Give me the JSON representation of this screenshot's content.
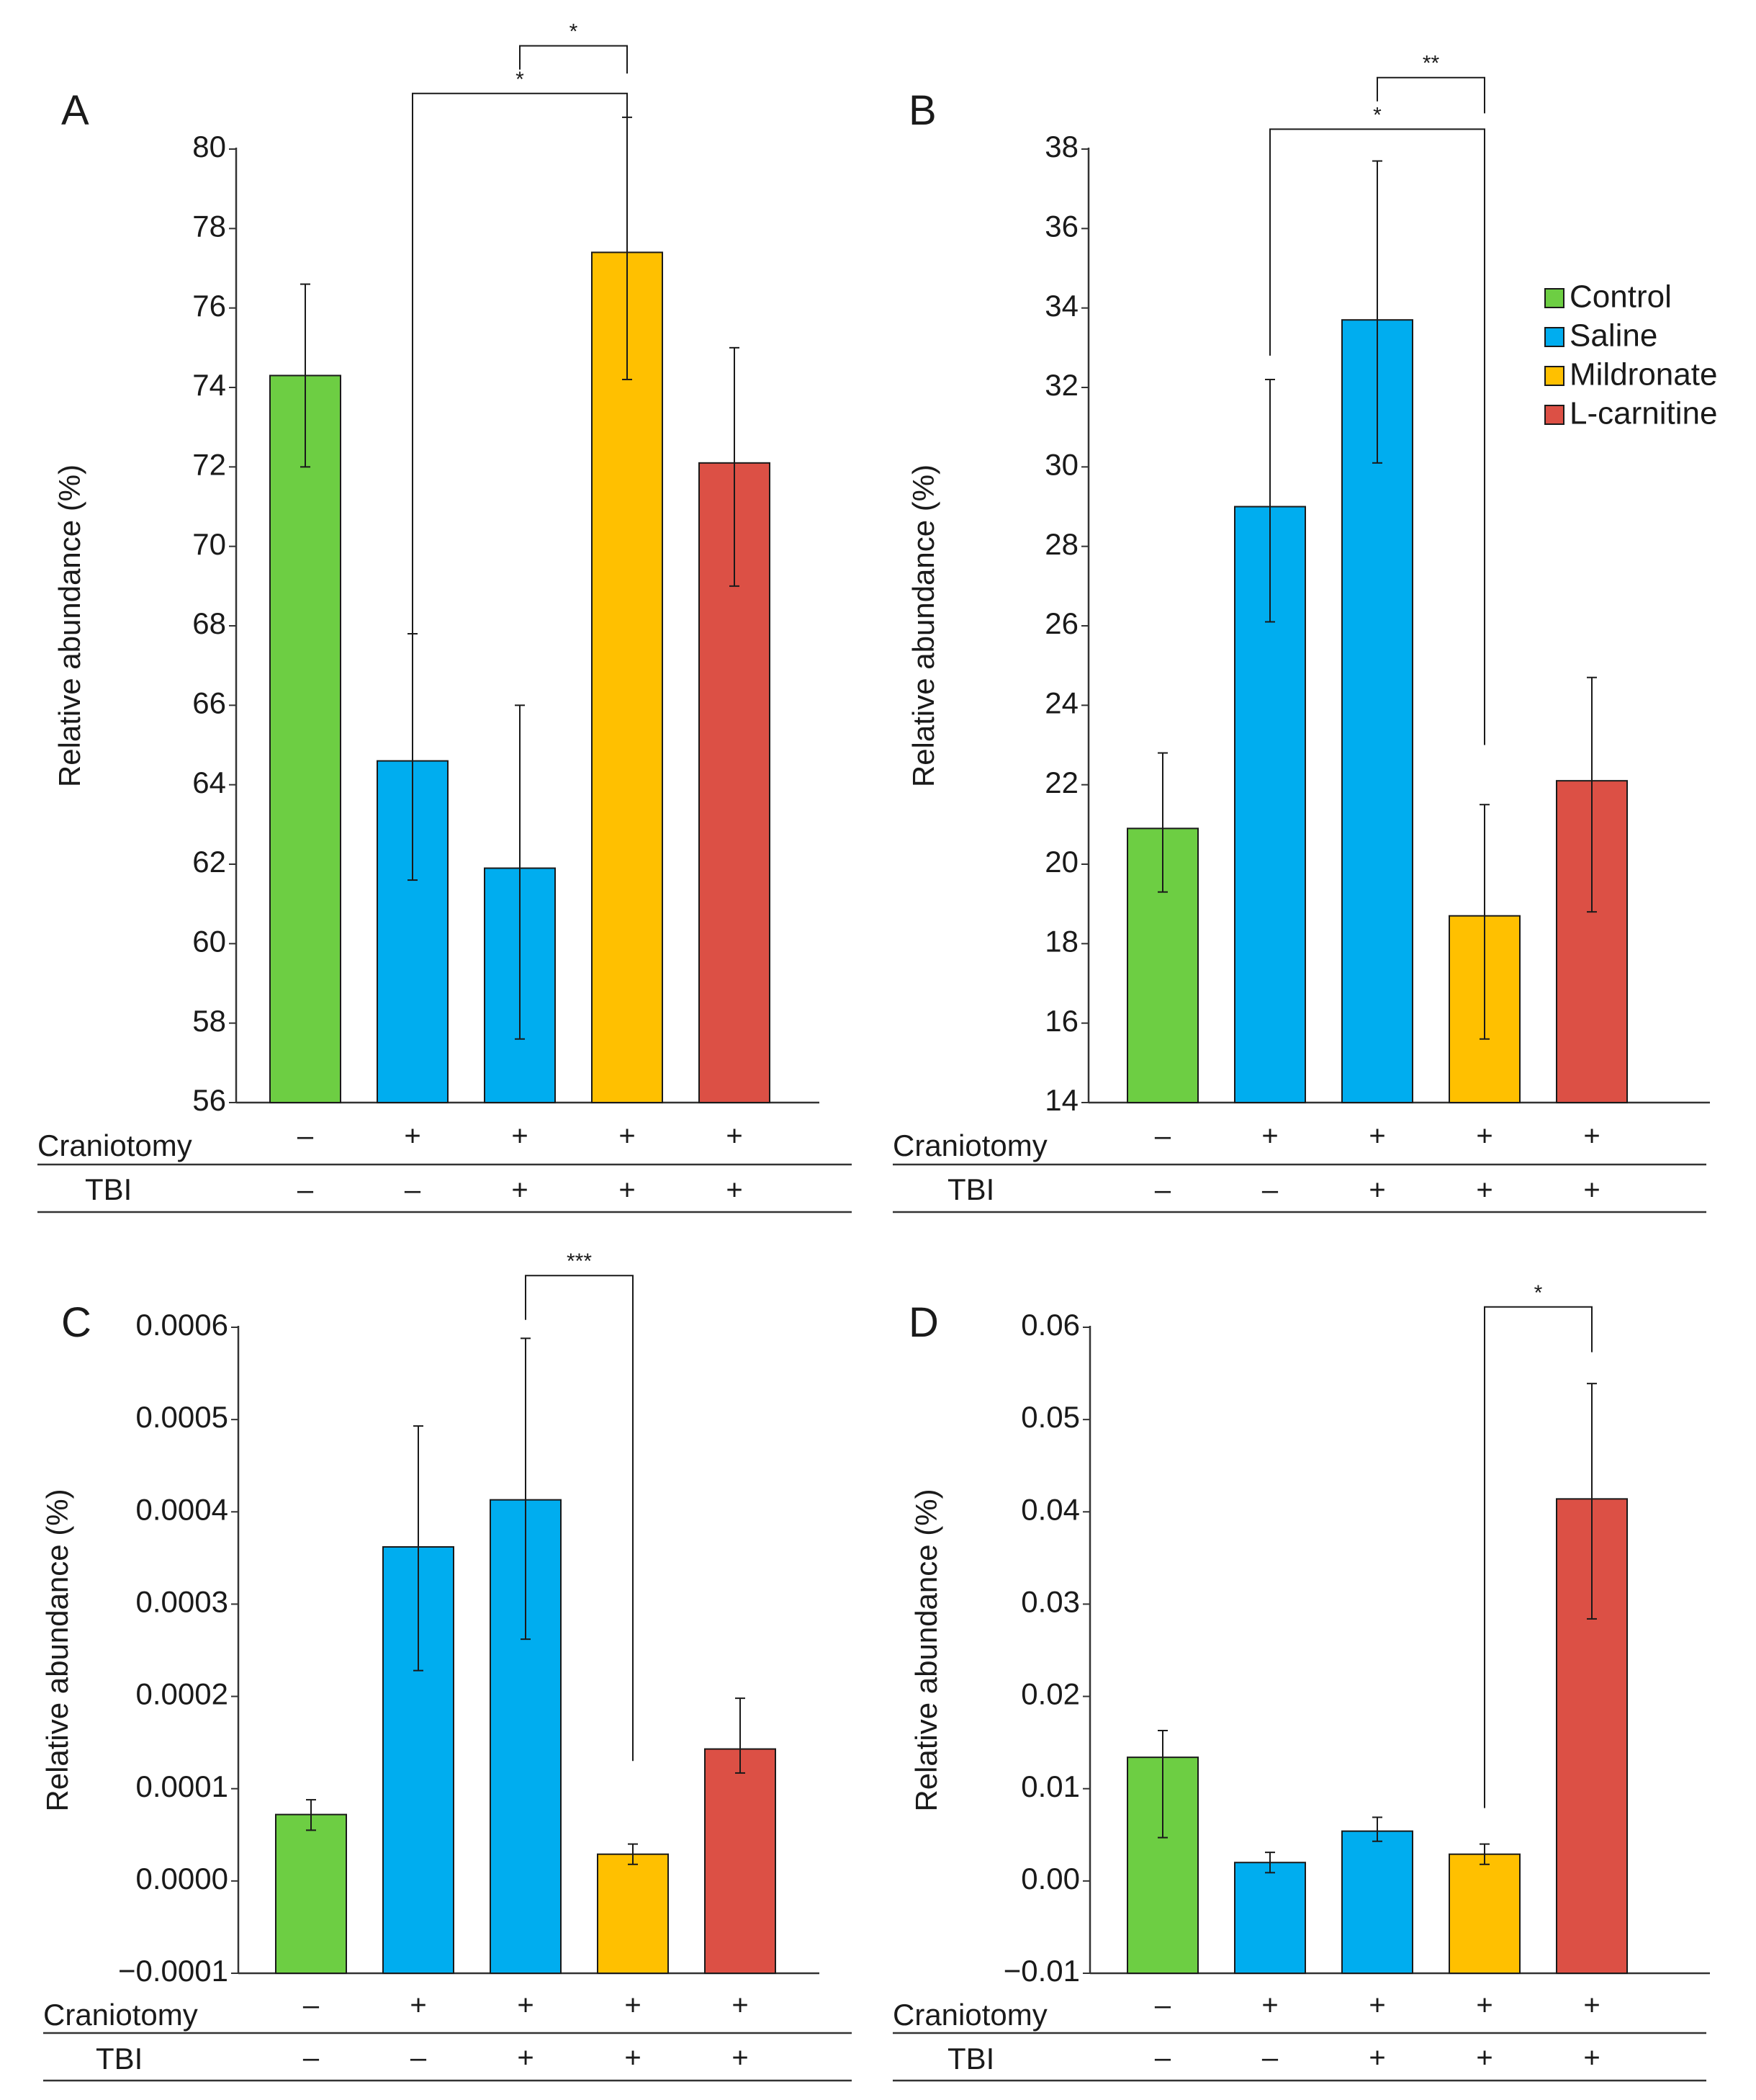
{
  "legend": [
    {
      "label": "Control",
      "color": "#6dce43"
    },
    {
      "label": "Saline",
      "color": "#00adef"
    },
    {
      "label": "Mildronate",
      "color": "#ffc000"
    },
    {
      "label": "L-carnitine",
      "color": "#dc5045"
    }
  ],
  "row_labels": {
    "craniotomy": "Craniotomy",
    "tbi": "TBI"
  },
  "chart_data": [
    {
      "panel": "A",
      "type": "bar",
      "ylabel": "Relative abundance (%)",
      "ylim": [
        56,
        80
      ],
      "y_ticks": [
        56,
        58,
        60,
        62,
        64,
        66,
        68,
        70,
        72,
        74,
        76,
        78,
        80
      ],
      "y_tick_labels": [
        "56",
        "58",
        "60",
        "62",
        "64",
        "66",
        "68",
        "70",
        "72",
        "74",
        "76",
        "78",
        "80"
      ],
      "bars": [
        {
          "group": "Control",
          "value": 74.3,
          "err_high": 76.6,
          "err_low": 72.0,
          "color": "#6dce43"
        },
        {
          "group": "Saline",
          "value": 64.6,
          "err_high": 67.8,
          "err_low": 61.6,
          "color": "#00adef"
        },
        {
          "group": "Saline",
          "value": 61.9,
          "err_high": 66.0,
          "err_low": 57.6,
          "color": "#00adef"
        },
        {
          "group": "Mildronate",
          "value": 77.4,
          "err_high": 80.8,
          "err_low": 74.2,
          "color": "#ffc000"
        },
        {
          "group": "L-carnitine",
          "value": 72.1,
          "err_high": 75.0,
          "err_low": 69.0,
          "color": "#dc5045"
        }
      ],
      "craniotomy": [
        "–",
        "+",
        "+",
        "+",
        "+"
      ],
      "tbi": [
        "–",
        "–",
        "+",
        "+",
        "+"
      ],
      "significance": [
        {
          "from": 1,
          "to": 3,
          "label": "*",
          "y_top": 81.4,
          "left_end": 67.6,
          "right_end": 80.8
        },
        {
          "from": 2,
          "to": 3,
          "label": "*",
          "y_top": 82.6,
          "left_end": 82.0,
          "right_end": 81.9
        }
      ]
    },
    {
      "panel": "B",
      "type": "bar",
      "ylabel": "Relative abundance (%)",
      "ylim": [
        14,
        38
      ],
      "y_ticks": [
        14,
        16,
        18,
        20,
        22,
        24,
        26,
        28,
        30,
        32,
        34,
        36,
        38
      ],
      "y_tick_labels": [
        "14",
        "16",
        "18",
        "20",
        "22",
        "24",
        "26",
        "28",
        "30",
        "32",
        "34",
        "36",
        "38"
      ],
      "bars": [
        {
          "group": "Control",
          "value": 20.9,
          "err_high": 22.8,
          "err_low": 19.3,
          "color": "#6dce43"
        },
        {
          "group": "Saline",
          "value": 29.0,
          "err_high": 32.2,
          "err_low": 26.1,
          "color": "#00adef"
        },
        {
          "group": "Saline",
          "value": 33.7,
          "err_high": 37.7,
          "err_low": 30.1,
          "color": "#00adef"
        },
        {
          "group": "Mildronate",
          "value": 18.7,
          "err_high": 21.5,
          "err_low": 15.6,
          "color": "#ffc000"
        },
        {
          "group": "L-carnitine",
          "value": 22.1,
          "err_high": 24.7,
          "err_low": 18.8,
          "color": "#dc5045"
        }
      ],
      "craniotomy": [
        "–",
        "+",
        "+",
        "+",
        "+"
      ],
      "tbi": [
        "–",
        "–",
        "+",
        "+",
        "+"
      ],
      "significance": [
        {
          "from": 1,
          "to": 3,
          "label": "*",
          "y_top": 38.5,
          "left_end": 32.8,
          "right_end": 23.0
        },
        {
          "from": 2,
          "to": 3,
          "label": "**",
          "y_top": 39.8,
          "left_end": 39.2,
          "right_end": 38.9
        }
      ]
    },
    {
      "panel": "C",
      "type": "bar",
      "ylabel": "Relative abundance (%)",
      "ylim": [
        -0.0001,
        0.0006
      ],
      "y_ticks": [
        -0.0001,
        0.0,
        0.0001,
        0.0002,
        0.0003,
        0.0004,
        0.0005,
        0.0006
      ],
      "y_tick_labels": [
        "−0.0001",
        "0.0000",
        "0.0001",
        "0.0002",
        "0.0003",
        "0.0004",
        "0.0005",
        "0.0006"
      ],
      "bars": [
        {
          "group": "Control",
          "value": 7.2e-05,
          "err_high": 8.8e-05,
          "err_low": 5.5e-05,
          "color": "#6dce43"
        },
        {
          "group": "Saline",
          "value": 0.000362,
          "err_high": 0.000493,
          "err_low": 0.000228,
          "color": "#00adef"
        },
        {
          "group": "Saline",
          "value": 0.000413,
          "err_high": 0.000588,
          "err_low": 0.000262,
          "color": "#00adef"
        },
        {
          "group": "Mildronate",
          "value": 2.9e-05,
          "err_high": 4e-05,
          "err_low": 1.8e-05,
          "color": "#ffc000"
        },
        {
          "group": "L-carnitine",
          "value": 0.000143,
          "err_high": 0.000198,
          "err_low": 0.000117,
          "color": "#dc5045"
        }
      ],
      "craniotomy": [
        "–",
        "+",
        "+",
        "+",
        "+"
      ],
      "tbi": [
        "–",
        "–",
        "+",
        "+",
        "+"
      ],
      "significance": [
        {
          "from": 2,
          "to": 3,
          "label": "***",
          "y_top": 0.000656,
          "left_end": 0.000608,
          "right_end": 0.00013
        }
      ]
    },
    {
      "panel": "D",
      "type": "bar",
      "ylabel": "Relative abundance (%)",
      "ylim": [
        -0.01,
        0.06
      ],
      "y_ticks": [
        -0.01,
        0.0,
        0.01,
        0.02,
        0.03,
        0.04,
        0.05,
        0.06
      ],
      "y_tick_labels": [
        "−0.01",
        "0.00",
        "0.01",
        "0.02",
        "0.03",
        "0.04",
        "0.05",
        "0.06"
      ],
      "bars": [
        {
          "group": "Control",
          "value": 0.0134,
          "err_high": 0.0163,
          "err_low": 0.0047,
          "color": "#6dce43"
        },
        {
          "group": "Saline",
          "value": 0.002,
          "err_high": 0.0031,
          "err_low": 0.0009,
          "color": "#00adef"
        },
        {
          "group": "Saline",
          "value": 0.0054,
          "err_high": 0.0069,
          "err_low": 0.0043,
          "color": "#00adef"
        },
        {
          "group": "Mildronate",
          "value": 0.0029,
          "err_high": 0.004,
          "err_low": 0.0018,
          "color": "#ffc000"
        },
        {
          "group": "L-carnitine",
          "value": 0.0414,
          "err_high": 0.0539,
          "err_low": 0.0284,
          "color": "#dc5045"
        }
      ],
      "craniotomy": [
        "–",
        "+",
        "+",
        "+",
        "+"
      ],
      "tbi": [
        "–",
        "–",
        "+",
        "+",
        "+"
      ],
      "significance": [
        {
          "from": 3,
          "to": 4,
          "label": "*",
          "y_top": 0.0622,
          "left_end": 0.0079,
          "right_end": 0.0573
        }
      ]
    }
  ]
}
